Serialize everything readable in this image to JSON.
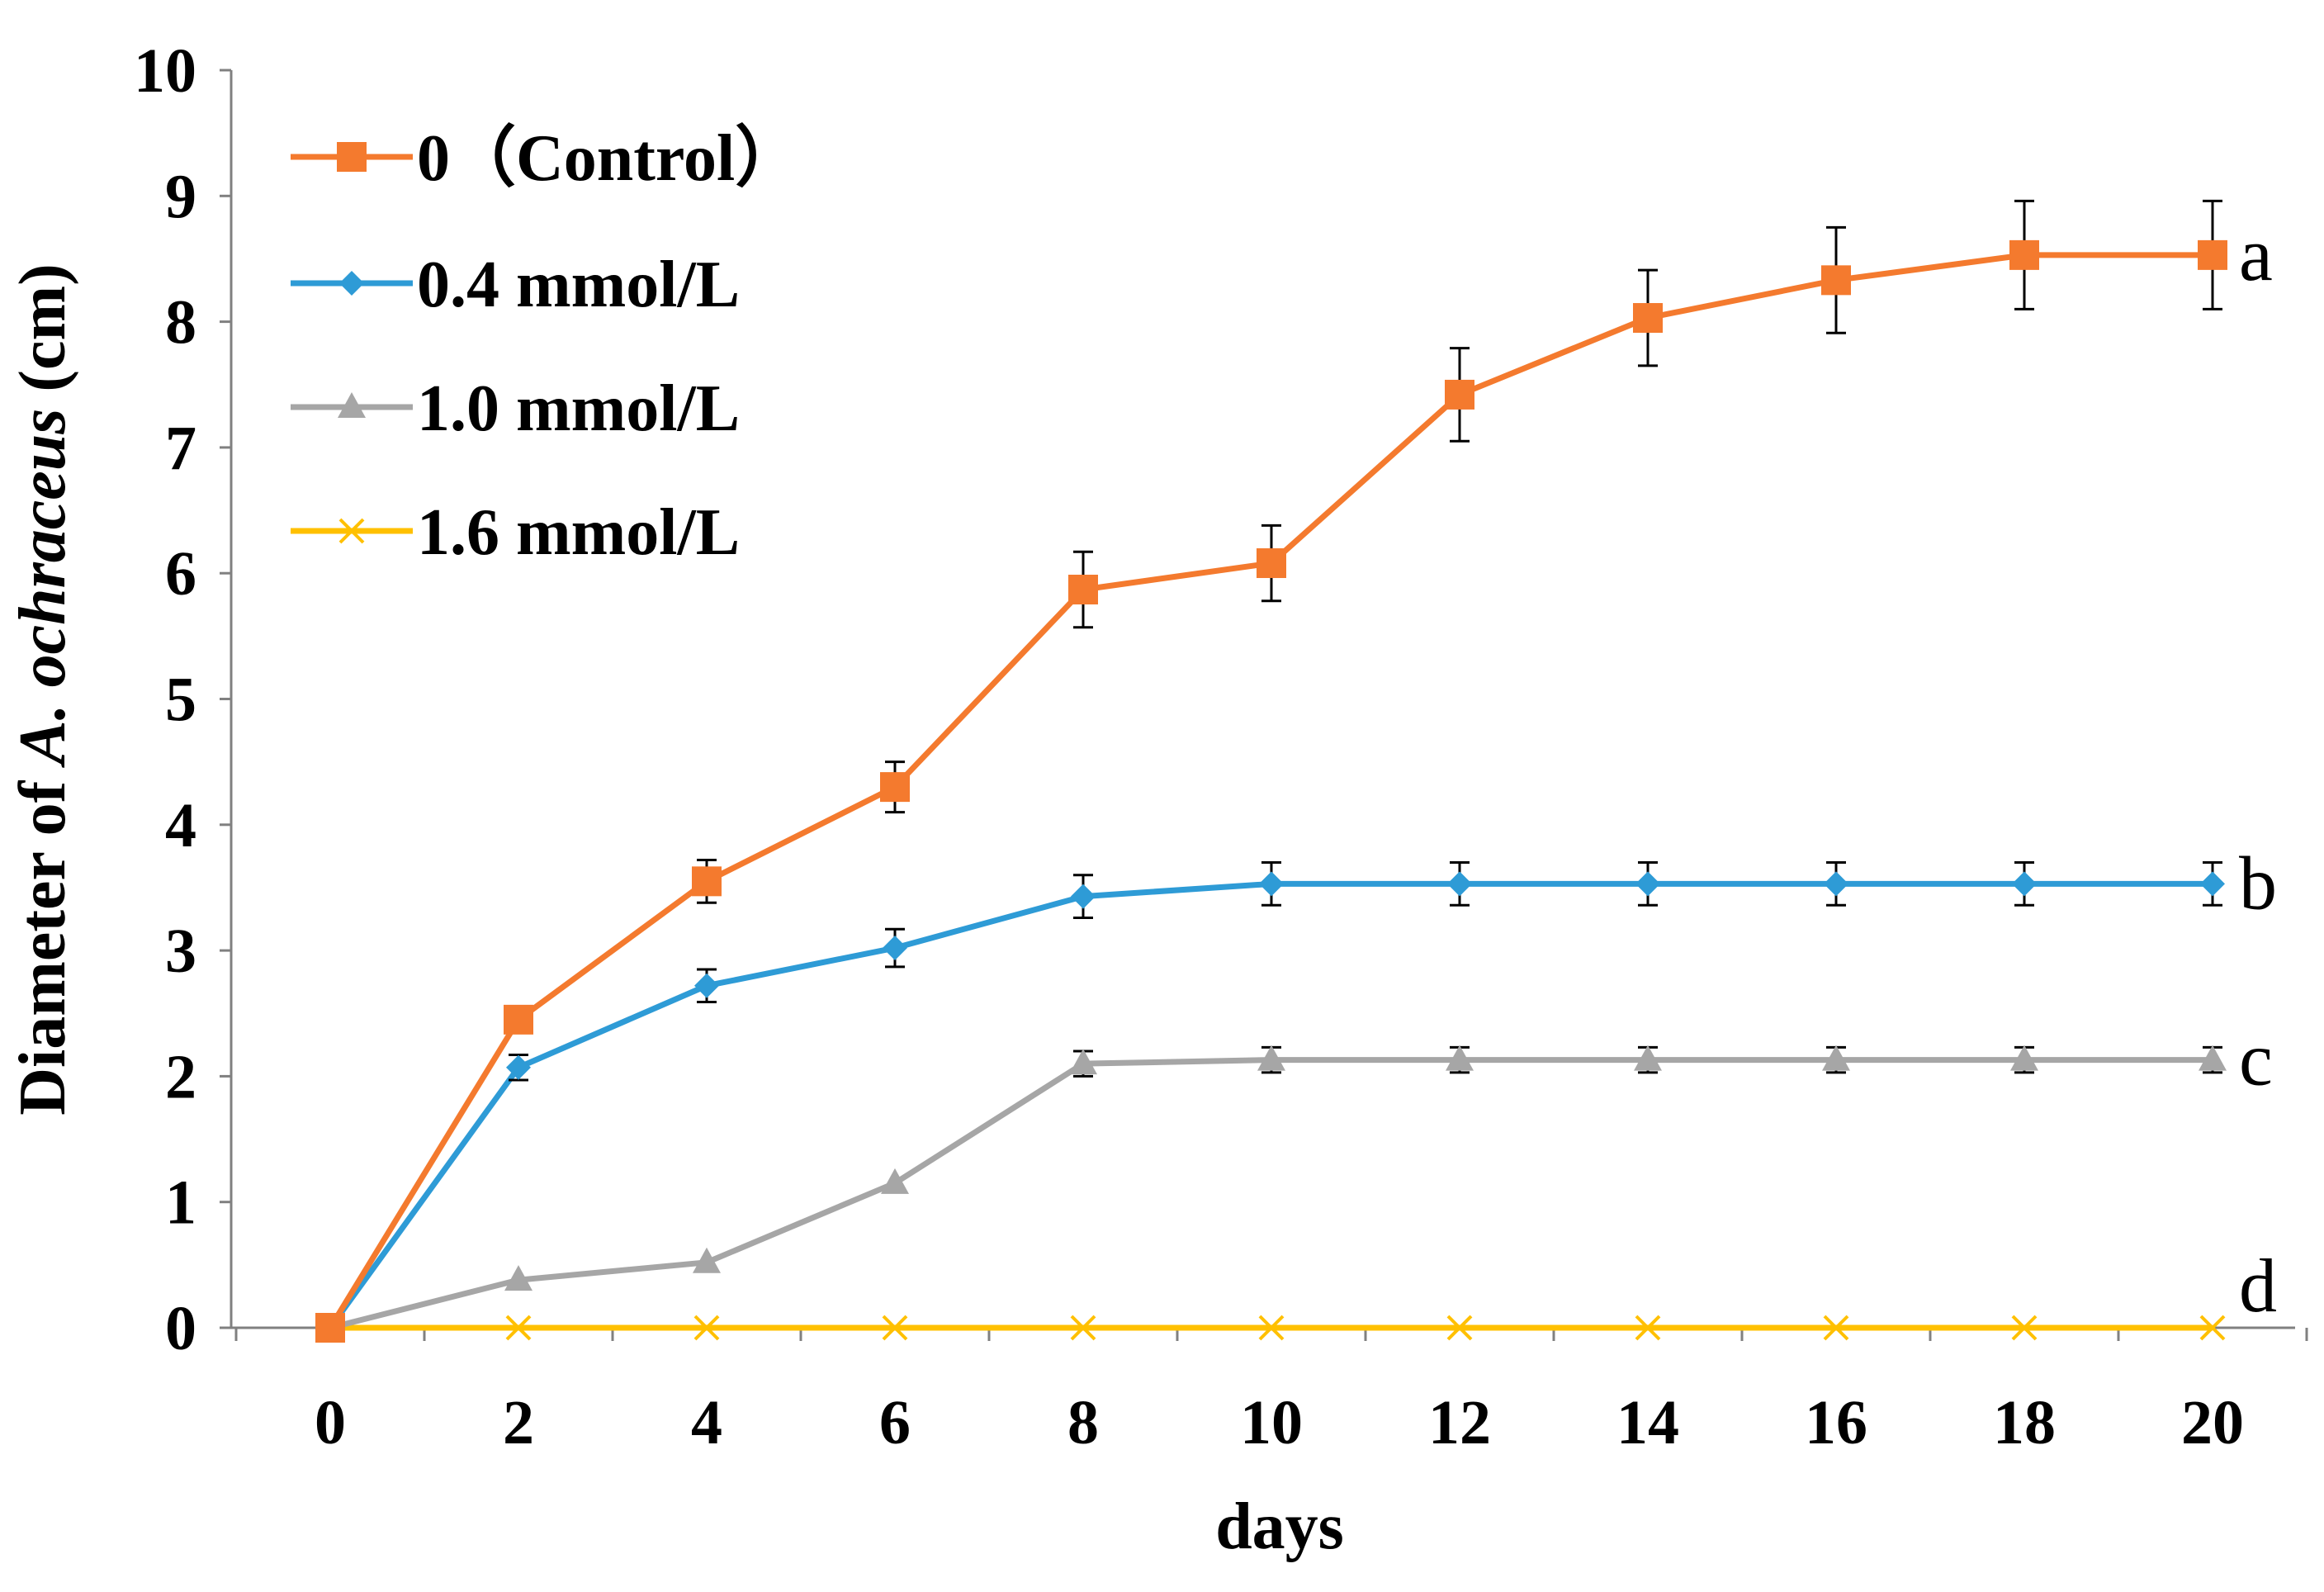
{
  "chart_data": {
    "type": "line",
    "title": "",
    "xlabel": "days",
    "ylabel_prefix": "Diameter of ",
    "ylabel_italic": "A. ochraceus",
    "ylabel_suffix": " (cm)",
    "xlim": [
      0,
      20
    ],
    "ylim": [
      0,
      10
    ],
    "grid": false,
    "legend_position": "top-left",
    "x": [
      0,
      2,
      4,
      6,
      8,
      10,
      12,
      14,
      16,
      18,
      20
    ],
    "x_tick_labels": [
      "0",
      "2",
      "4",
      "6",
      "8",
      "10",
      "12",
      "14",
      "16",
      "18",
      "20"
    ],
    "y_tick_labels": [
      "0",
      "1",
      "2",
      "3",
      "4",
      "5",
      "6",
      "7",
      "8",
      "9",
      "10"
    ],
    "series": [
      {
        "name": "0（Control）",
        "color": "#f47a2e",
        "marker": "square",
        "values": [
          0,
          2.45,
          3.55,
          4.3,
          5.87,
          6.08,
          7.42,
          8.03,
          8.33,
          8.53,
          8.53
        ],
        "errors": [
          0,
          0.08,
          0.17,
          0.2,
          0.3,
          0.3,
          0.37,
          0.38,
          0.42,
          0.43,
          0.43
        ],
        "group_letter": "a"
      },
      {
        "name": "0.4 mmol/L",
        "color": "#2e9bd6",
        "marker": "diamond",
        "values": [
          0,
          2.07,
          2.72,
          3.02,
          3.43,
          3.53,
          3.53,
          3.53,
          3.53,
          3.53,
          3.53
        ],
        "errors": [
          0,
          0.1,
          0.13,
          0.15,
          0.17,
          0.17,
          0.17,
          0.17,
          0.17,
          0.17,
          0.17
        ],
        "group_letter": "b"
      },
      {
        "name": "1.0 mmol/L",
        "color": "#a6a6a6",
        "marker": "triangle",
        "values": [
          0,
          0.38,
          0.52,
          1.15,
          2.1,
          2.13,
          2.13,
          2.13,
          2.13,
          2.13,
          2.13
        ],
        "errors": [
          0,
          0,
          0,
          0,
          0.1,
          0.1,
          0.1,
          0.1,
          0.1,
          0.1,
          0.1
        ],
        "group_letter": "c"
      },
      {
        "name": "1.6 mmol/L",
        "color": "#ffc000",
        "marker": "x",
        "values": [
          0,
          0,
          0,
          0,
          0,
          0,
          0,
          0,
          0,
          0,
          0
        ],
        "errors": [
          0,
          0,
          0,
          0,
          0,
          0,
          0,
          0,
          0,
          0,
          0
        ],
        "group_letter": "d"
      }
    ]
  }
}
